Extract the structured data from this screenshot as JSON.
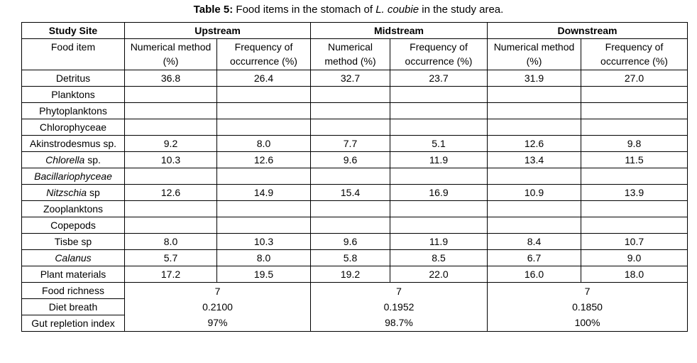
{
  "title": {
    "label": "Table 5:",
    "before": "Food items in the stomach of",
    "species": "L. coubie",
    "after": "in the study area."
  },
  "header": {
    "site_label": "Study Site",
    "item_label": "Food item",
    "sites": [
      "Upstream",
      "Midstream",
      "Downstream"
    ],
    "methods": [
      "Numerical method (%)",
      "Frequency of occurrence (%)"
    ]
  },
  "rows": [
    {
      "item": "Detritus",
      "values": [
        "36.8",
        "26.4",
        "32.7",
        "23.7",
        "31.9",
        "27.0"
      ]
    },
    {
      "item": "Planktons"
    },
    {
      "item": "Phytoplanktons"
    },
    {
      "item": "Chlorophyceae"
    },
    {
      "item": "Akinstrodesmus sp.",
      "values": [
        "9.2",
        "8.0",
        "7.7",
        "5.1",
        "12.6",
        "9.8"
      ]
    },
    {
      "item_italic": "Chlorella",
      "item": "sp.",
      "values": [
        "10.3",
        "12.6",
        "9.6",
        "11.9",
        "13.4",
        "11.5"
      ]
    },
    {
      "item_italic": "Bacillariophyceae"
    },
    {
      "item_italic": "Nitzschia",
      "item": "sp",
      "values": [
        "12.6",
        "14.9",
        "15.4",
        "16.9",
        "10.9",
        "13.9"
      ]
    },
    {
      "item": "Zooplanktons"
    },
    {
      "item": "Copepods"
    },
    {
      "item": "Tisbe sp",
      "values": [
        "8.0",
        "10.3",
        "9.6",
        "11.9",
        "8.4",
        "10.7"
      ]
    },
    {
      "item_italic": "Calanus",
      "values": [
        "5.7",
        "8.0",
        "5.8",
        "8.5",
        "6.7",
        "9.0"
      ]
    },
    {
      "item": "Plant materials",
      "values": [
        "17.2",
        "19.5",
        "19.2",
        "22.0",
        "16.0",
        "18.0"
      ]
    }
  ],
  "summary": [
    {
      "label": "Food richness",
      "values": [
        "7",
        "7",
        "7"
      ]
    },
    {
      "label": "Diet breath",
      "values": [
        "0.2100",
        "0.1952",
        "0.1850"
      ]
    },
    {
      "label": "Gut repletion index",
      "values": [
        "97%",
        "98.7%",
        "100%"
      ]
    }
  ]
}
